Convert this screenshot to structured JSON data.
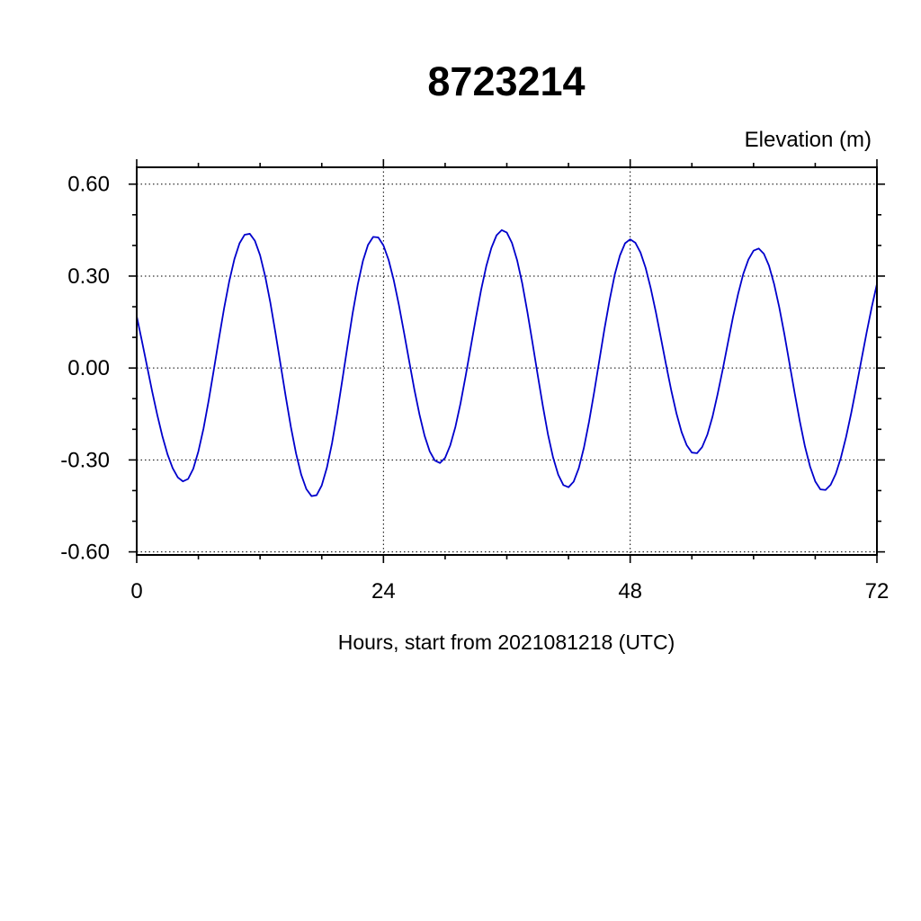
{
  "page": {
    "background": "#ffffff"
  },
  "chart_data": {
    "type": "line",
    "title": "8723214",
    "ylabel": "Elevation (m)",
    "xlabel": "Hours, start from 2021081218 (UTC)",
    "xlim": [
      0,
      72
    ],
    "ylim": [
      -0.61,
      0.655
    ],
    "xticks": [
      0,
      24,
      48,
      72
    ],
    "xtick_labels": [
      "0",
      "24",
      "48",
      "72"
    ],
    "yticks": [
      -0.6,
      -0.3,
      0.0,
      0.3,
      0.6
    ],
    "ytick_labels": [
      "-0.60",
      "-0.30",
      "0.00",
      "0.30",
      "0.60"
    ],
    "x_minor_step": 6,
    "y_minor_step": 0.1,
    "grid_x": [
      24,
      48
    ],
    "grid_y": [
      -0.6,
      -0.3,
      0.0,
      0.3,
      0.6
    ],
    "grid_style": "dotted",
    "legend": "none",
    "line_color": "#0000cc",
    "frame_color": "#000000",
    "series": [
      {
        "name": "elevation",
        "x_start": 0,
        "x_step": 0.5,
        "y": [
          0.169,
          0.089,
          0.007,
          -0.076,
          -0.153,
          -0.223,
          -0.282,
          -0.327,
          -0.357,
          -0.37,
          -0.362,
          -0.329,
          -0.272,
          -0.197,
          -0.106,
          -0.006,
          0.096,
          0.195,
          0.283,
          0.355,
          0.407,
          0.435,
          0.438,
          0.415,
          0.368,
          0.299,
          0.213,
          0.114,
          0.01,
          -0.094,
          -0.193,
          -0.279,
          -0.348,
          -0.395,
          -0.418,
          -0.415,
          -0.383,
          -0.325,
          -0.245,
          -0.147,
          -0.039,
          0.071,
          0.178,
          0.272,
          0.349,
          0.402,
          0.428,
          0.426,
          0.4,
          0.353,
          0.287,
          0.206,
          0.116,
          0.023,
          -0.069,
          -0.151,
          -0.221,
          -0.272,
          -0.302,
          -0.31,
          -0.293,
          -0.252,
          -0.192,
          -0.115,
          -0.025,
          0.07,
          0.165,
          0.255,
          0.332,
          0.392,
          0.433,
          0.45,
          0.442,
          0.408,
          0.352,
          0.276,
          0.183,
          0.082,
          -0.022,
          -0.123,
          -0.216,
          -0.292,
          -0.348,
          -0.382,
          -0.389,
          -0.371,
          -0.327,
          -0.26,
          -0.175,
          -0.078,
          0.025,
          0.128,
          0.222,
          0.305,
          0.367,
          0.407,
          0.42,
          0.409,
          0.377,
          0.327,
          0.26,
          0.182,
          0.096,
          0.009,
          -0.074,
          -0.148,
          -0.209,
          -0.252,
          -0.276,
          -0.278,
          -0.258,
          -0.218,
          -0.16,
          -0.086,
          -0.005,
          0.081,
          0.166,
          0.242,
          0.307,
          0.354,
          0.383,
          0.39,
          0.373,
          0.334,
          0.274,
          0.198,
          0.11,
          0.014,
          -0.082,
          -0.174,
          -0.256,
          -0.322,
          -0.37,
          -0.396,
          -0.398,
          -0.381,
          -0.345,
          -0.292,
          -0.225,
          -0.147,
          -0.061,
          0.028,
          0.116,
          0.199,
          0.274
        ]
      }
    ]
  }
}
